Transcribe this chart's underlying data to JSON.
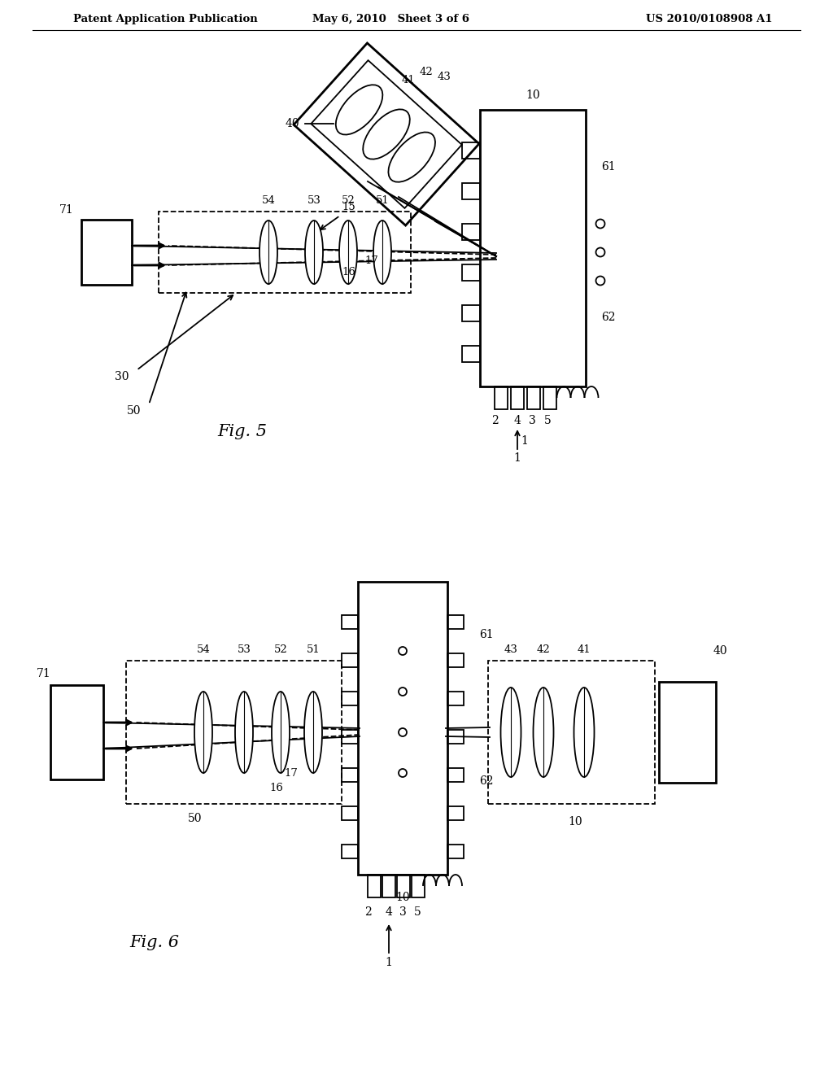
{
  "header_left": "Patent Application Publication",
  "header_mid": "May 6, 2010   Sheet 3 of 6",
  "header_right": "US 2010/0108908 A1",
  "bg_color": "#ffffff",
  "lw": 1.3,
  "lw2": 2.0
}
